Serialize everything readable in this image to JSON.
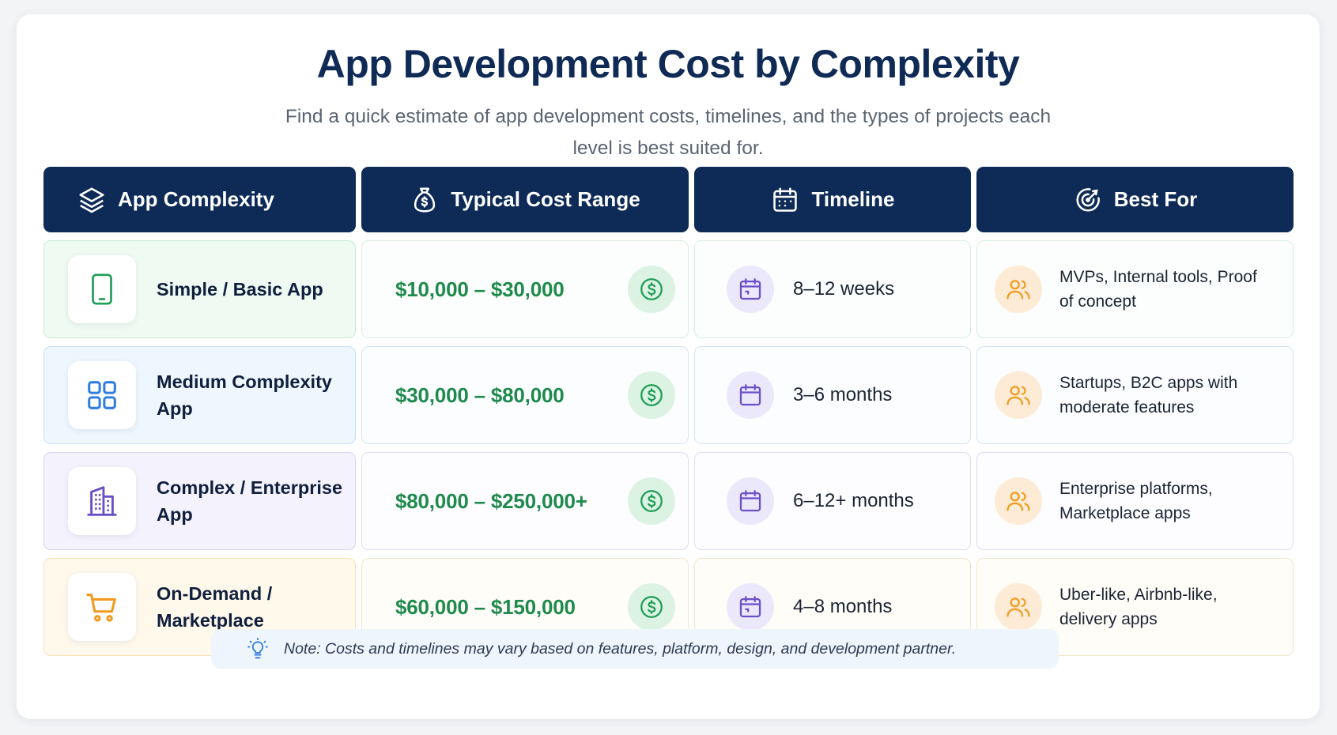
{
  "title": "App Development Cost by Complexity",
  "subtitle": "Find a quick estimate of app development costs, timelines, and the types of projects each level is best suited for.",
  "headers": {
    "complexity": {
      "label": "App Complexity",
      "icon": "layers-icon"
    },
    "cost": {
      "label": "Typical Cost Range",
      "icon": "money-bag-icon"
    },
    "timeline": {
      "label": "Timeline",
      "icon": "calendar-icon"
    },
    "best_for": {
      "label": "Best For",
      "icon": "target-icon"
    }
  },
  "rows": [
    {
      "complexity": "Simple / Basic App",
      "icon": "smartphone-icon",
      "accent": "#1e9e57",
      "cost": "$10,000 – $30,000",
      "timeline": "8–12 weeks",
      "best_for": "MVPs, Internal tools, Proof of concept"
    },
    {
      "complexity": "Medium Complexity App",
      "icon": "grid-icon",
      "accent": "#2f7de1",
      "cost": "$30,000 – $80,000",
      "timeline": "3–6 months",
      "best_for": "Startups, B2C apps with moderate features"
    },
    {
      "complexity": "Complex / Enterprise App",
      "icon": "building-icon",
      "accent": "#6b4fc8",
      "cost": "$80,000 – $250,000+",
      "timeline": "6–12+ months",
      "best_for": "Enterprise platforms, Marketplace apps"
    },
    {
      "complexity": "On-Demand / Marketplace",
      "icon": "shopping-cart-icon",
      "accent": "#f29a1f",
      "cost": "$60,000 – $150,000",
      "timeline": "4–8 months",
      "best_for": "Uber-like, Airbnb-like, delivery apps"
    }
  ],
  "note": "Note: Costs and timelines may vary based on features, platform, design, and development partner.",
  "colors": {
    "header_bg": "#0e2b57",
    "cost_text": "#1e8a4c",
    "title": "#0f2a55",
    "timeline_icon": "#6b4fc8",
    "best_for_icon": "#f29a1f"
  }
}
